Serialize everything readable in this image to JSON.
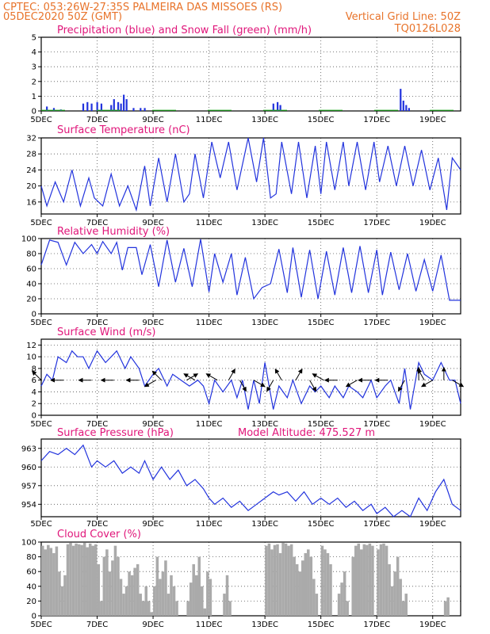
{
  "header": {
    "line1": "CPTEC:   053:26W-27:35S   PALMEIRA DAS MISSOES (RS)",
    "line2_left": "05DEC2020 50Z (GMT)",
    "line2_right": "Vertical Grid Line: 50Z",
    "code": "TQ0126L028"
  },
  "x_ticks": [
    "5DEC",
    "7DEC",
    "9DEC",
    "11DEC",
    "13DEC",
    "15DEC",
    "17DEC",
    "19DEC"
  ],
  "colors": {
    "series": "#2233dd",
    "snow": "#22aa22",
    "cloud": "#aaaaaa",
    "title": "#e0167a",
    "header": "#e8732a"
  },
  "chart_data": [
    {
      "type": "bar",
      "title": "Precipitation (blue) and Snow Fall (green) (mm/h)",
      "ylim": [
        0,
        5
      ],
      "yticks": [
        "0",
        "1",
        "2",
        "3",
        "4",
        "5"
      ],
      "series": [
        {
          "name": "Precipitation",
          "color": "blue",
          "points": [
            [
              5.2,
              0.3
            ],
            [
              5.45,
              0.2
            ],
            [
              5.7,
              0.1
            ],
            [
              6.5,
              0.5
            ],
            [
              6.65,
              0.6
            ],
            [
              6.8,
              0.5
            ],
            [
              7.0,
              0.6
            ],
            [
              7.15,
              0.5
            ],
            [
              7.5,
              0.4
            ],
            [
              7.6,
              0.8
            ],
            [
              7.75,
              0.6
            ],
            [
              7.85,
              0.5
            ],
            [
              7.95,
              1.1
            ],
            [
              8.05,
              0.8
            ],
            [
              8.3,
              0.2
            ],
            [
              8.55,
              0.2
            ],
            [
              8.7,
              0.2
            ],
            [
              13.3,
              0.5
            ],
            [
              13.45,
              0.6
            ],
            [
              13.55,
              0.4
            ],
            [
              17.85,
              1.5
            ],
            [
              17.95,
              0.7
            ],
            [
              18.05,
              0.4
            ],
            [
              18.15,
              0.2
            ]
          ]
        },
        {
          "name": "Snow Fall",
          "color": "green",
          "points": []
        }
      ]
    },
    {
      "type": "line",
      "title": "Surface Temperature (nC)",
      "ylim": [
        13,
        32
      ],
      "yticks": [
        "16",
        "20",
        "24",
        "28",
        "32"
      ],
      "series": [
        {
          "name": "Temperature",
          "x": [
            5.0,
            5.2,
            5.5,
            5.8,
            6.1,
            6.4,
            6.7,
            6.9,
            7.2,
            7.5,
            7.8,
            8.1,
            8.4,
            8.7,
            8.9,
            9.2,
            9.5,
            9.8,
            10.1,
            10.3,
            10.5,
            10.8,
            11.1,
            11.4,
            11.7,
            12.0,
            12.4,
            12.7,
            12.95,
            13.2,
            13.4,
            13.6,
            13.95,
            14.2,
            14.5,
            14.8,
            15.0,
            15.2,
            15.5,
            15.8,
            16.0,
            16.3,
            16.6,
            16.9,
            17.1,
            17.4,
            17.7,
            18.0,
            18.3,
            18.6,
            18.9,
            19.2,
            19.5,
            19.7,
            20.0
          ],
          "y": [
            20,
            15,
            21,
            16,
            24,
            15,
            22,
            17,
            15,
            23,
            15,
            20,
            14,
            25,
            15,
            27,
            16,
            28,
            16,
            18,
            28,
            17,
            31,
            22,
            31,
            19,
            32,
            21,
            32,
            17,
            18,
            31,
            18,
            31,
            17,
            30,
            18,
            31,
            19,
            31,
            20,
            31,
            19,
            31,
            21,
            30,
            20,
            30,
            20,
            29,
            19,
            27,
            14,
            27,
            24
          ]
        }
      ]
    },
    {
      "type": "line",
      "title": "Relative Humidity (%)",
      "ylim": [
        0,
        100
      ],
      "yticks": [
        "0",
        "20",
        "40",
        "60",
        "80",
        "100"
      ],
      "series": [
        {
          "name": "Relative Humidity",
          "x": [
            5.0,
            5.3,
            5.6,
            5.9,
            6.2,
            6.5,
            6.8,
            7.0,
            7.2,
            7.5,
            7.7,
            7.9,
            8.1,
            8.4,
            8.6,
            8.9,
            9.2,
            9.5,
            9.8,
            10.1,
            10.4,
            10.7,
            11.0,
            11.2,
            11.5,
            11.8,
            12.0,
            12.3,
            12.6,
            12.9,
            13.2,
            13.5,
            13.8,
            14.0,
            14.3,
            14.6,
            14.9,
            15.2,
            15.5,
            15.8,
            16.1,
            16.4,
            16.7,
            17.0,
            17.2,
            17.5,
            17.8,
            18.1,
            18.4,
            18.7,
            19.0,
            19.3,
            19.6,
            20.0
          ],
          "y": [
            65,
            98,
            95,
            65,
            95,
            80,
            92,
            80,
            96,
            80,
            95,
            58,
            88,
            88,
            52,
            92,
            36,
            98,
            42,
            87,
            36,
            99,
            29,
            80,
            42,
            80,
            25,
            75,
            20,
            35,
            40,
            86,
            28,
            88,
            22,
            85,
            20,
            83,
            25,
            88,
            28,
            90,
            28,
            85,
            25,
            82,
            32,
            80,
            30,
            72,
            30,
            78,
            18,
            18
          ]
        }
      ]
    },
    {
      "type": "line",
      "title": "Surface Wind (m/s)",
      "ylim": [
        0,
        13
      ],
      "yticks": [
        "0",
        "2",
        "4",
        "6",
        "8",
        "10",
        "12"
      ],
      "series": [
        {
          "name": "Wind speed",
          "x": [
            5.0,
            5.2,
            5.4,
            5.6,
            5.9,
            6.1,
            6.3,
            6.5,
            6.7,
            7.0,
            7.3,
            7.5,
            7.7,
            8.0,
            8.2,
            8.5,
            8.7,
            9.0,
            9.2,
            9.5,
            9.7,
            10.0,
            10.3,
            10.6,
            10.8,
            11.0,
            11.2,
            11.5,
            11.8,
            12.0,
            12.2,
            12.4,
            12.6,
            12.8,
            13.0,
            13.3,
            13.5,
            13.8,
            14.0,
            14.3,
            14.6,
            14.8,
            15.0,
            15.3,
            15.5,
            15.8,
            16.0,
            16.3,
            16.5,
            16.8,
            17.0,
            17.3,
            17.5,
            17.8,
            18.0,
            18.2,
            18.5,
            18.7,
            19.0,
            19.3,
            19.6,
            19.8,
            20.0
          ],
          "y": [
            5,
            7,
            6,
            10,
            9,
            11,
            10,
            10,
            8,
            11,
            9,
            10,
            11,
            8,
            10,
            8,
            5,
            7,
            8,
            5,
            7,
            6,
            5,
            6,
            5,
            2,
            6,
            4,
            6,
            3,
            6,
            1,
            6,
            2,
            9,
            1,
            5,
            3,
            6,
            2,
            5,
            4,
            5,
            3,
            5,
            3,
            5,
            4,
            3,
            6,
            3,
            5,
            6,
            2,
            8,
            1,
            9,
            7,
            6,
            9,
            6,
            6,
            2
          ]
        }
      ],
      "vectors_deg": [
        [
          5.0,
          135
        ],
        [
          5.8,
          180
        ],
        [
          6.8,
          180
        ],
        [
          7.6,
          180
        ],
        [
          8.5,
          180
        ],
        [
          9.1,
          210
        ],
        [
          9.3,
          135
        ],
        [
          10.2,
          30
        ],
        [
          10.5,
          150
        ],
        [
          11.3,
          150
        ],
        [
          11.7,
          60
        ],
        [
          12.1,
          300
        ],
        [
          12.6,
          330
        ],
        [
          13.3,
          240
        ],
        [
          13.6,
          120
        ],
        [
          14.1,
          60
        ],
        [
          14.6,
          300
        ],
        [
          15.1,
          150
        ],
        [
          15.6,
          180
        ],
        [
          16.3,
          210
        ],
        [
          16.8,
          180
        ],
        [
          17.4,
          180
        ],
        [
          18.0,
          240
        ],
        [
          18.5,
          90
        ],
        [
          18.7,
          120
        ],
        [
          19.0,
          210
        ],
        [
          19.4,
          90
        ],
        [
          19.7,
          330
        ]
      ]
    },
    {
      "type": "line",
      "title": "Surface Pressure (hPa)",
      "annotation": "Model Altitude: 475.527 m",
      "ylim": [
        952,
        964.5
      ],
      "yticks": [
        "954",
        "957",
        "960",
        "963"
      ],
      "series": [
        {
          "name": "Surface Pressure",
          "x": [
            5.0,
            5.3,
            5.6,
            5.9,
            6.2,
            6.5,
            6.8,
            7.0,
            7.3,
            7.6,
            7.9,
            8.2,
            8.5,
            8.7,
            9.0,
            9.3,
            9.6,
            9.9,
            10.2,
            10.5,
            10.8,
            11.0,
            11.2,
            11.5,
            11.8,
            12.1,
            12.4,
            12.7,
            13.0,
            13.3,
            13.5,
            13.8,
            14.1,
            14.4,
            14.7,
            15.0,
            15.3,
            15.6,
            15.9,
            16.2,
            16.5,
            16.8,
            17.0,
            17.3,
            17.6,
            17.9,
            18.2,
            18.5,
            18.8,
            19.1,
            19.4,
            19.7,
            20.0
          ],
          "y": [
            961,
            962.5,
            962,
            963,
            962,
            963.5,
            960,
            961,
            960,
            961,
            959,
            960,
            959,
            961,
            958,
            960,
            958,
            959.5,
            957,
            958,
            956.5,
            955,
            954,
            955,
            953.5,
            954.5,
            953,
            954,
            955,
            956,
            955.5,
            956,
            954.5,
            956,
            954,
            955,
            954,
            955,
            953.5,
            954.5,
            953,
            954,
            952.5,
            953.5,
            952,
            953,
            952,
            955,
            953,
            956,
            958,
            954,
            953
          ]
        }
      ]
    },
    {
      "type": "bar",
      "title": "Cloud Cover (%)",
      "ylim": [
        0,
        100
      ],
      "yticks": [
        "0",
        "20",
        "40",
        "60",
        "80",
        "100"
      ],
      "series": [
        {
          "name": "Cloud Cover",
          "x": [
            5.0,
            5.1,
            5.2,
            5.3,
            5.4,
            5.5,
            5.6,
            5.7,
            5.8,
            5.9,
            6.0,
            6.1,
            6.2,
            6.3,
            6.4,
            6.5,
            6.6,
            6.7,
            6.8,
            6.9,
            7.0,
            7.1,
            7.2,
            7.3,
            7.4,
            7.5,
            7.6,
            7.7,
            7.8,
            7.9,
            8.0,
            8.1,
            8.2,
            8.3,
            8.4,
            8.5,
            8.6,
            8.7,
            8.8,
            8.9,
            9.0,
            9.1,
            9.2,
            9.3,
            9.4,
            9.5,
            9.6,
            9.7,
            9.8,
            9.9,
            10.0,
            10.1,
            10.2,
            10.3,
            10.4,
            10.5,
            10.6,
            10.7,
            10.8,
            10.9,
            11.0,
            11.1,
            11.2,
            11.3,
            11.4,
            11.5,
            11.6,
            11.7,
            11.8,
            11.9,
            12.0,
            12.1,
            12.2,
            12.3,
            12.4,
            12.5,
            12.6,
            12.7,
            12.8,
            12.9,
            13.0,
            13.1,
            13.2,
            13.3,
            13.4,
            13.5,
            13.6,
            13.7,
            13.8,
            13.9,
            14.0,
            14.1,
            14.2,
            14.3,
            14.4,
            14.5,
            14.6,
            14.7,
            14.8,
            14.9,
            15.0,
            15.1,
            15.2,
            15.3,
            15.4,
            15.5,
            15.6,
            15.7,
            15.8,
            15.9,
            16.0,
            16.1,
            16.2,
            16.3,
            16.4,
            16.5,
            16.6,
            16.7,
            16.8,
            16.9,
            17.0,
            17.1,
            17.2,
            17.3,
            17.4,
            17.5,
            17.6,
            17.7,
            17.8,
            17.9,
            18.0,
            18.1,
            18.2,
            18.3,
            18.4,
            18.5,
            18.6,
            18.7,
            18.8,
            18.9,
            19.0,
            19.1,
            19.2,
            19.3,
            19.4,
            19.5,
            19.6,
            19.7,
            19.8,
            19.9
          ],
          "values": [
            95,
            90,
            96,
            92,
            85,
            94,
            60,
            40,
            55,
            97,
            99,
            95,
            98,
            97,
            96,
            99,
            93,
            98,
            95,
            97,
            70,
            20,
            80,
            90,
            60,
            75,
            95,
            80,
            50,
            30,
            40,
            60,
            55,
            65,
            70,
            30,
            20,
            40,
            20,
            5,
            40,
            80,
            50,
            60,
            75,
            30,
            55,
            40,
            20,
            0,
            0,
            0,
            20,
            45,
            70,
            55,
            80,
            40,
            10,
            60,
            50,
            0,
            0,
            0,
            0,
            30,
            55,
            20,
            0,
            0,
            0,
            0,
            0,
            0,
            0,
            0,
            0,
            0,
            0,
            0,
            95,
            98,
            90,
            96,
            97,
            85,
            99,
            98,
            95,
            97,
            80,
            70,
            60,
            75,
            85,
            90,
            80,
            50,
            30,
            0,
            95,
            90,
            85,
            70,
            0,
            0,
            30,
            45,
            60,
            20,
            0,
            80,
            95,
            98,
            90,
            97,
            96,
            98,
            95,
            0,
            90,
            97,
            98,
            95,
            70,
            40,
            60,
            80,
            50,
            20,
            30,
            0,
            0,
            0,
            0,
            0,
            0,
            0,
            0,
            0,
            0,
            0,
            0,
            0,
            20,
            25,
            0,
            0,
            0,
            0
          ]
        }
      ]
    }
  ]
}
